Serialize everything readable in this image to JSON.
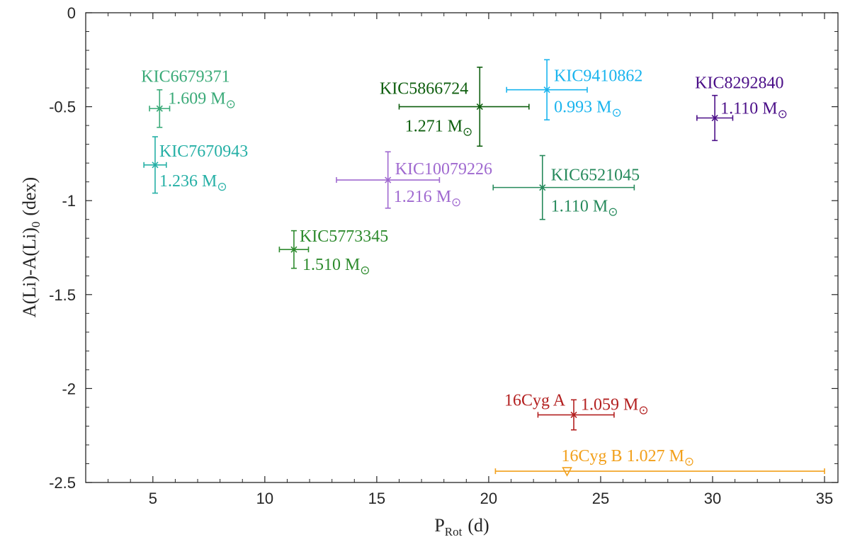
{
  "chart_data": {
    "type": "scatter",
    "title": "",
    "xlabel": "P",
    "xlabel_sub": "Rot",
    "xlabel_unit": "(d)",
    "ylabel": "A(Li)-A(Li)",
    "ylabel_sub": "0",
    "ylabel_unit": "(dex)",
    "xlim": [
      2,
      35.6
    ],
    "ylim": [
      -2.5,
      0
    ],
    "xticks": [
      5,
      10,
      15,
      20,
      25,
      30,
      35
    ],
    "yticks": [
      0,
      -0.5,
      -1,
      -1.5,
      -2,
      -2.5
    ],
    "xtick_labels": [
      "5",
      "10",
      "15",
      "20",
      "25",
      "30",
      "35"
    ],
    "ytick_labels": [
      "0",
      "-0.5",
      "-1",
      "-1.5",
      "-2",
      "-2.5"
    ],
    "grid": false,
    "mass_unit": "M",
    "series": [
      {
        "name": "KIC6679371",
        "mass": "1.609",
        "x": 5.3,
        "y": -0.51,
        "xerr": [
          0.45,
          0.45
        ],
        "yerr": [
          0.1,
          0.1
        ],
        "marker": "x",
        "color": "#3aaa78"
      },
      {
        "name": "KIC7670943",
        "mass": "1.236",
        "x": 5.1,
        "y": -0.81,
        "xerr": [
          0.5,
          0.5
        ],
        "yerr": [
          0.15,
          0.15
        ],
        "marker": "x",
        "color": "#26b0a6"
      },
      {
        "name": "KIC5773345",
        "mass": "1.510",
        "x": 11.3,
        "y": -1.26,
        "xerr": [
          0.65,
          0.65
        ],
        "yerr": [
          0.1,
          0.1
        ],
        "marker": "x",
        "color": "#2e8b2e"
      },
      {
        "name": "KIC10079226",
        "mass": "1.216",
        "x": 15.5,
        "y": -0.89,
        "xerr": [
          2.3,
          2.3
        ],
        "yerr": [
          0.15,
          0.15
        ],
        "marker": "x",
        "color": "#a06ad0"
      },
      {
        "name": "KIC5866724",
        "mass": "1.271",
        "x": 19.6,
        "y": -0.5,
        "xerr": [
          3.6,
          2.2
        ],
        "yerr": [
          0.21,
          0.21
        ],
        "marker": "x",
        "color": "#0e5e0e"
      },
      {
        "name": "KIC9410862",
        "mass": "0.993",
        "x": 22.6,
        "y": -0.41,
        "xerr": [
          1.8,
          1.8
        ],
        "yerr": [
          0.16,
          0.16
        ],
        "marker": "x",
        "color": "#1ab4ee"
      },
      {
        "name": "KIC6521045",
        "mass": "1.110",
        "x": 22.4,
        "y": -0.93,
        "xerr": [
          2.2,
          4.1
        ],
        "yerr": [
          0.17,
          0.17
        ],
        "marker": "x",
        "color": "#278a5c"
      },
      {
        "name": "KIC8292840",
        "mass": "1.110",
        "x": 30.1,
        "y": -0.56,
        "xerr": [
          0.8,
          0.8
        ],
        "yerr": [
          0.12,
          0.12
        ],
        "marker": "x",
        "color": "#4b0f88"
      },
      {
        "name": "16Cyg A",
        "mass": "1.059",
        "x": 23.8,
        "y": -2.14,
        "xerr": [
          1.6,
          1.8
        ],
        "yerr": [
          0.08,
          0.08
        ],
        "marker": "x",
        "color": "#b32020"
      },
      {
        "name": "16Cyg B",
        "mass": "1.027",
        "x": 23.5,
        "y": -2.44,
        "xerr": [
          3.2,
          11.5
        ],
        "yerr": [
          0,
          0
        ],
        "marker": "triangle-down",
        "color": "#f2a01b"
      }
    ]
  }
}
